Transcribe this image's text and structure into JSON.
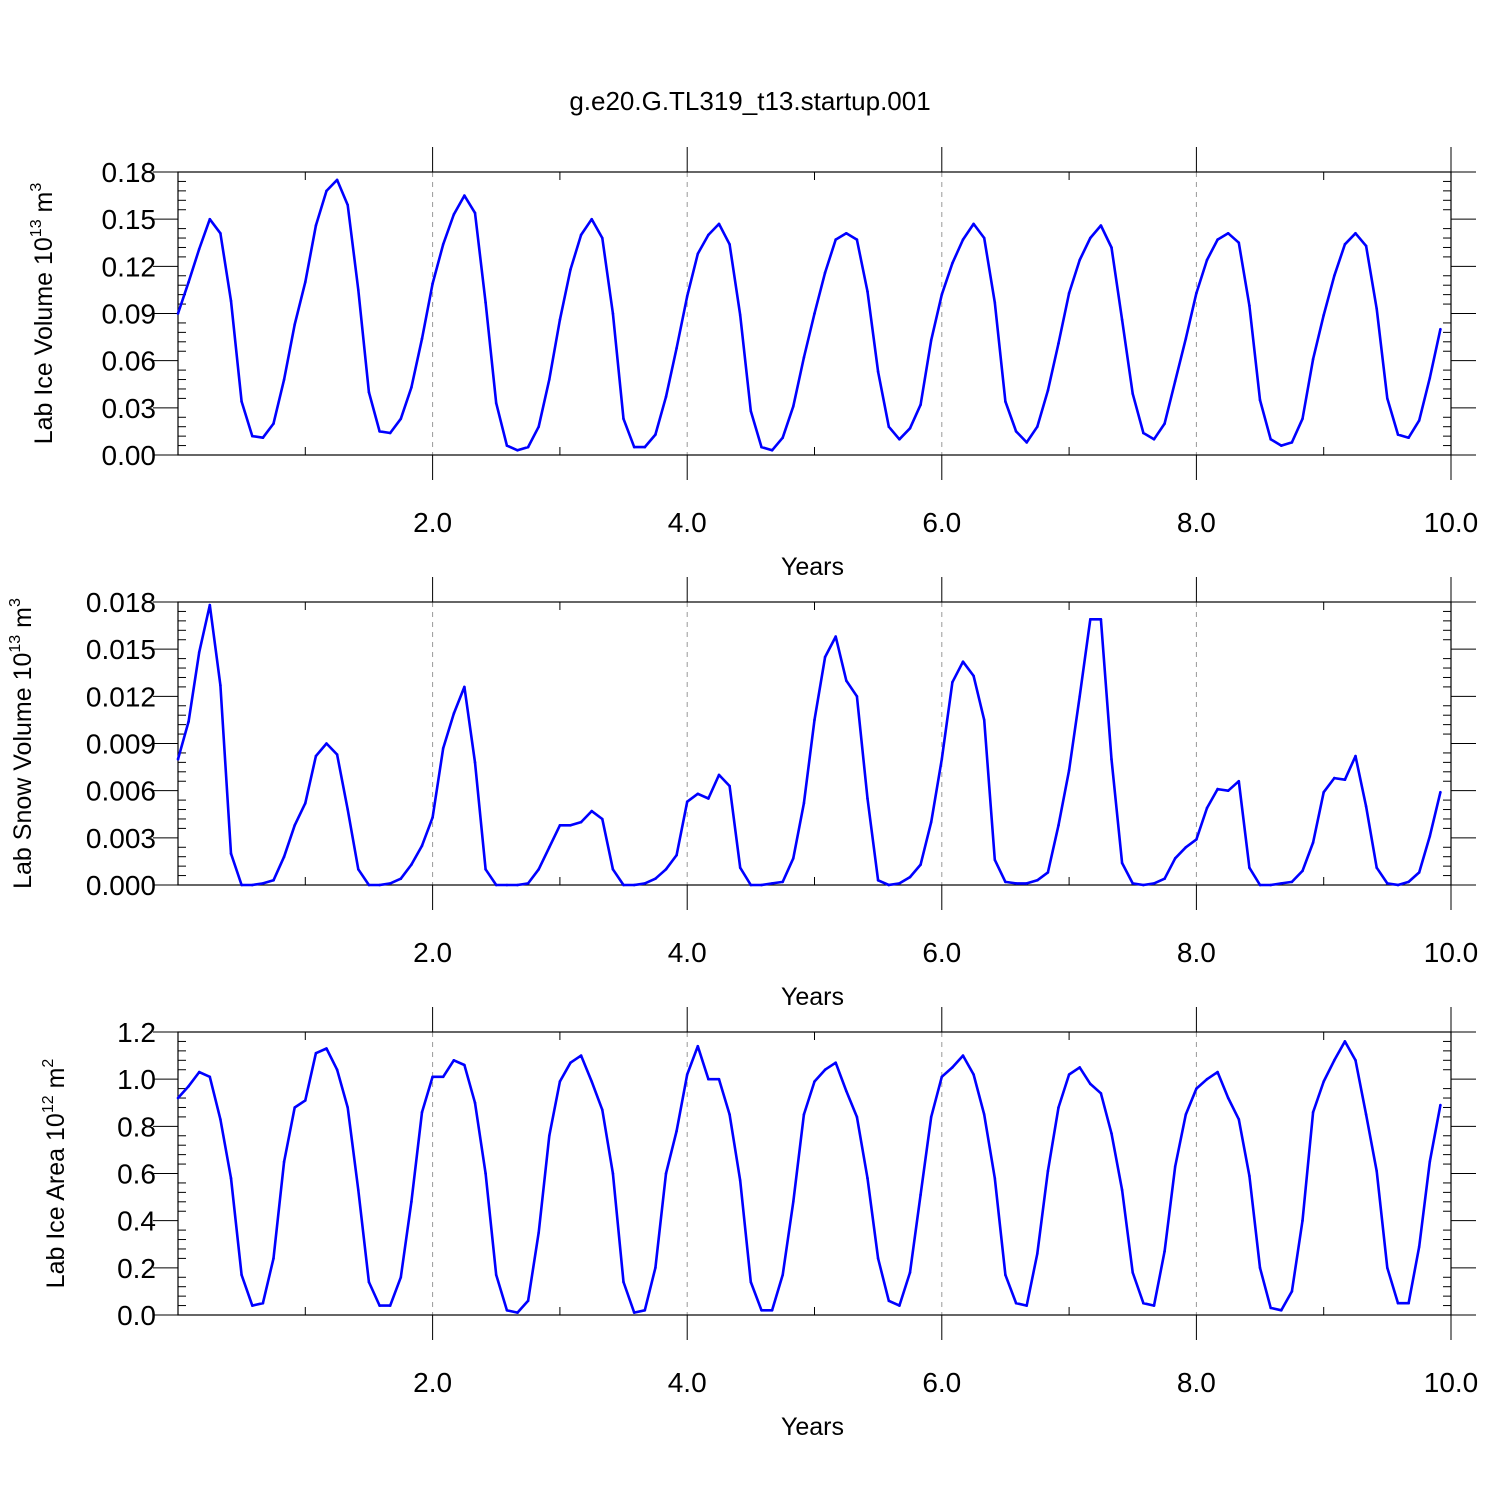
{
  "title": "g.e20.G.TL319_t13.startup.001",
  "colors": {
    "line": "#0000ff",
    "grid": "#999999",
    "axis": "#000000"
  },
  "chart_data": [
    {
      "type": "line",
      "xlabel": "Years",
      "ylabel": {
        "text": "Lab Ice Volume 10",
        "sup": "13",
        "unit": " m",
        "unit_sup": "3"
      },
      "xlim": [
        0,
        10
      ],
      "ylim": [
        0,
        0.18
      ],
      "xticks": [
        2,
        4,
        6,
        8,
        10
      ],
      "xtick_labels": [
        "2.0",
        "4.0",
        "6.0",
        "8.0",
        "10.0"
      ],
      "yticks": [
        0,
        0.03,
        0.06,
        0.09,
        0.12,
        0.15,
        0.18
      ],
      "ytick_labels": [
        "0.00",
        "0.03",
        "0.06",
        "0.09",
        "0.12",
        "0.15",
        "0.18"
      ],
      "grid": "vertical dashed at even years",
      "x_start": 0.0,
      "x_step": 0.0833333,
      "series": [
        {
          "values": [
            0.09,
            0.11,
            0.131,
            0.15,
            0.141,
            0.098,
            0.034,
            0.012,
            0.011,
            0.02,
            0.048,
            0.083,
            0.11,
            0.146,
            0.168,
            0.175,
            0.159,
            0.105,
            0.04,
            0.015,
            0.014,
            0.023,
            0.043,
            0.074,
            0.109,
            0.134,
            0.153,
            0.165,
            0.154,
            0.097,
            0.033,
            0.006,
            0.003,
            0.005,
            0.018,
            0.048,
            0.086,
            0.118,
            0.14,
            0.15,
            0.138,
            0.09,
            0.023,
            0.005,
            0.005,
            0.013,
            0.037,
            0.068,
            0.101,
            0.128,
            0.14,
            0.147,
            0.134,
            0.089,
            0.028,
            0.005,
            0.003,
            0.011,
            0.031,
            0.062,
            0.09,
            0.116,
            0.137,
            0.141,
            0.137,
            0.104,
            0.053,
            0.018,
            0.01,
            0.017,
            0.032,
            0.073,
            0.102,
            0.122,
            0.137,
            0.147,
            0.138,
            0.097,
            0.034,
            0.015,
            0.008,
            0.018,
            0.041,
            0.071,
            0.103,
            0.124,
            0.138,
            0.146,
            0.132,
            0.086,
            0.039,
            0.014,
            0.01,
            0.02,
            0.047,
            0.074,
            0.103,
            0.124,
            0.137,
            0.141,
            0.135,
            0.095,
            0.035,
            0.01,
            0.006,
            0.008,
            0.023,
            0.061,
            0.089,
            0.114,
            0.134,
            0.141,
            0.133,
            0.093,
            0.036,
            0.013,
            0.011,
            0.022,
            0.049,
            0.08
          ]
        }
      ]
    },
    {
      "type": "line",
      "xlabel": "Years",
      "ylabel": {
        "text": "Lab Snow Volume 10",
        "sup": "13",
        "unit": " m",
        "unit_sup": "3"
      },
      "xlim": [
        0,
        10
      ],
      "ylim": [
        0,
        0.018
      ],
      "xticks": [
        2,
        4,
        6,
        8,
        10
      ],
      "xtick_labels": [
        "2.0",
        "4.0",
        "6.0",
        "8.0",
        "10.0"
      ],
      "yticks": [
        0,
        0.003,
        0.006,
        0.009,
        0.012,
        0.015,
        0.018
      ],
      "ytick_labels": [
        "0.000",
        "0.003",
        "0.006",
        "0.009",
        "0.012",
        "0.015",
        "0.018"
      ],
      "grid": "vertical dashed at even years",
      "x_start": 0.0,
      "x_step": 0.0833333,
      "series": [
        {
          "values": [
            0.008,
            0.0104,
            0.0148,
            0.0178,
            0.0127,
            0.002,
            0.0,
            0.0,
            0.0001,
            0.0003,
            0.0018,
            0.0038,
            0.0052,
            0.0082,
            0.009,
            0.0083,
            0.0048,
            0.001,
            0.0,
            0.0,
            0.0001,
            0.0004,
            0.0013,
            0.0025,
            0.0043,
            0.0087,
            0.0109,
            0.0126,
            0.0078,
            0.001,
            0.0,
            0.0,
            0.0,
            0.0001,
            0.001,
            0.0024,
            0.0038,
            0.0038,
            0.004,
            0.0047,
            0.0042,
            0.001,
            0.0,
            0.0,
            0.0001,
            0.0004,
            0.001,
            0.0019,
            0.0053,
            0.0058,
            0.0055,
            0.007,
            0.0063,
            0.0011,
            0.0,
            0.0,
            0.0001,
            0.0002,
            0.0017,
            0.0052,
            0.0105,
            0.0145,
            0.0158,
            0.013,
            0.012,
            0.0055,
            0.0003,
            0.0,
            0.0001,
            0.0005,
            0.0013,
            0.004,
            0.008,
            0.0129,
            0.0142,
            0.0133,
            0.0105,
            0.0016,
            0.0002,
            0.0001,
            0.0001,
            0.0003,
            0.0008,
            0.0038,
            0.0073,
            0.012,
            0.0169,
            0.0169,
            0.008,
            0.0014,
            0.0001,
            0.0,
            0.0001,
            0.0004,
            0.0017,
            0.0024,
            0.0029,
            0.0049,
            0.0061,
            0.006,
            0.0066,
            0.0011,
            0.0,
            0.0,
            0.0001,
            0.0002,
            0.0009,
            0.0027,
            0.0059,
            0.0068,
            0.0067,
            0.0082,
            0.005,
            0.0011,
            0.0001,
            0.0,
            0.0002,
            0.0008,
            0.0031,
            0.0059
          ]
        }
      ]
    },
    {
      "type": "line",
      "xlabel": "Years",
      "ylabel": {
        "text": "Lab Ice Area 10",
        "sup": "12",
        "unit": " m",
        "unit_sup": "2"
      },
      "xlim": [
        0,
        10
      ],
      "ylim": [
        0,
        1.2
      ],
      "xticks": [
        2,
        4,
        6,
        8,
        10
      ],
      "xtick_labels": [
        "2.0",
        "4.0",
        "6.0",
        "8.0",
        "10.0"
      ],
      "yticks": [
        0,
        0.2,
        0.4,
        0.6,
        0.8,
        1.0,
        1.2
      ],
      "ytick_labels": [
        "0.0",
        "0.2",
        "0.4",
        "0.6",
        "0.8",
        "1.0",
        "1.2"
      ],
      "grid": "vertical dashed at even years",
      "x_start": 0.0,
      "x_step": 0.0833333,
      "series": [
        {
          "values": [
            0.92,
            0.97,
            1.03,
            1.01,
            0.83,
            0.58,
            0.17,
            0.04,
            0.05,
            0.24,
            0.65,
            0.88,
            0.91,
            1.11,
            1.13,
            1.04,
            0.88,
            0.53,
            0.14,
            0.04,
            0.04,
            0.16,
            0.48,
            0.86,
            1.01,
            1.01,
            1.08,
            1.06,
            0.9,
            0.6,
            0.17,
            0.02,
            0.01,
            0.06,
            0.35,
            0.76,
            0.99,
            1.07,
            1.1,
            0.99,
            0.87,
            0.6,
            0.14,
            0.01,
            0.02,
            0.2,
            0.6,
            0.78,
            1.02,
            1.14,
            1.0,
            1.0,
            0.85,
            0.57,
            0.14,
            0.02,
            0.02,
            0.17,
            0.48,
            0.85,
            0.99,
            1.04,
            1.07,
            0.95,
            0.84,
            0.58,
            0.24,
            0.06,
            0.04,
            0.18,
            0.51,
            0.84,
            1.01,
            1.05,
            1.1,
            1.02,
            0.85,
            0.58,
            0.17,
            0.05,
            0.04,
            0.26,
            0.61,
            0.88,
            1.02,
            1.05,
            0.98,
            0.94,
            0.77,
            0.53,
            0.18,
            0.05,
            0.04,
            0.27,
            0.63,
            0.85,
            0.96,
            1.0,
            1.03,
            0.92,
            0.83,
            0.59,
            0.2,
            0.03,
            0.02,
            0.1,
            0.4,
            0.86,
            0.99,
            1.08,
            1.16,
            1.08,
            0.85,
            0.61,
            0.2,
            0.05,
            0.05,
            0.29,
            0.65,
            0.89
          ]
        }
      ]
    }
  ]
}
